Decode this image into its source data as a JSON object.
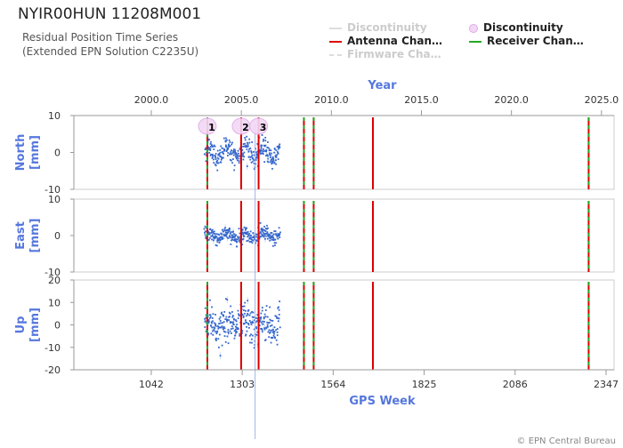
{
  "header": {
    "title": "NYIR00HUN 11208M001",
    "subtitle_line1": "Residual Position Time Series",
    "subtitle_line2": "(Extended EPN Solution C2235U)"
  },
  "legend": [
    {
      "label": "Discontinuity",
      "color": "#cccccc",
      "style": "line",
      "muted": true
    },
    {
      "label": "Discontinuity",
      "color": "#e8b8ee",
      "style": "circle",
      "muted": false
    },
    {
      "label": "Antenna Chan…",
      "color": "#dd0000",
      "style": "line",
      "muted": false
    },
    {
      "label": "Receiver Chan…",
      "color": "#22aa22",
      "style": "line",
      "muted": false
    },
    {
      "label": "Firmware Cha…",
      "color": "#cccccc",
      "style": "dashed",
      "muted": true
    }
  ],
  "copyright": "© EPN Central Bureau",
  "colors": {
    "series": "#3366cc",
    "antenna": "#dd0000",
    "receiver": "#22aa22",
    "axis_title": "#5577dd"
  },
  "chart_data": {
    "type": "scatter",
    "top_axis": {
      "label": "Year",
      "ticks": [
        "2000.0",
        "2005.0",
        "2010.0",
        "2015.0",
        "2020.0",
        "2025.0"
      ],
      "range": [
        1995.7,
        2025.7
      ]
    },
    "bottom_axis": {
      "label": "GPS Week",
      "ticks": [
        1042,
        1303,
        1564,
        1825,
        2086,
        2347
      ],
      "range": [
        820,
        2370
      ]
    },
    "panels": [
      {
        "name": "North",
        "unit": "[mm]",
        "ylim": [
          -10,
          10
        ],
        "yticks": [
          10,
          0,
          -10
        ]
      },
      {
        "name": "East",
        "unit": "[mm]",
        "ylim": [
          -10,
          10
        ],
        "yticks": [
          10,
          0,
          -10
        ]
      },
      {
        "name": "Up",
        "unit": "[mm]",
        "ylim": [
          -20,
          20
        ],
        "yticks": [
          20,
          10,
          0,
          -10,
          -20
        ]
      }
    ],
    "series": [
      {
        "name": "North",
        "week_range": [
          1195,
          1412
        ],
        "mean": 0,
        "spread": 1.5,
        "annual_amplitude": 1.8
      },
      {
        "name": "East",
        "week_range": [
          1195,
          1412
        ],
        "mean": 0,
        "spread": 1.0,
        "annual_amplitude": 0.8
      },
      {
        "name": "Up",
        "week_range": [
          1195,
          1412
        ],
        "mean": 0,
        "spread": 4.0,
        "annual_amplitude": 2.5
      }
    ],
    "antenna_changes_week": [
      1203,
      1300,
      1350,
      1480,
      1508,
      1678,
      2297
    ],
    "receiver_changes_week": [
      1203,
      1480,
      1508,
      2297
    ],
    "discontinuities": [
      {
        "label": "1",
        "week": 1203
      },
      {
        "label": "2",
        "week": 1300
      },
      {
        "label": "3",
        "week": 1350
      }
    ],
    "event_line_week": 1340
  }
}
